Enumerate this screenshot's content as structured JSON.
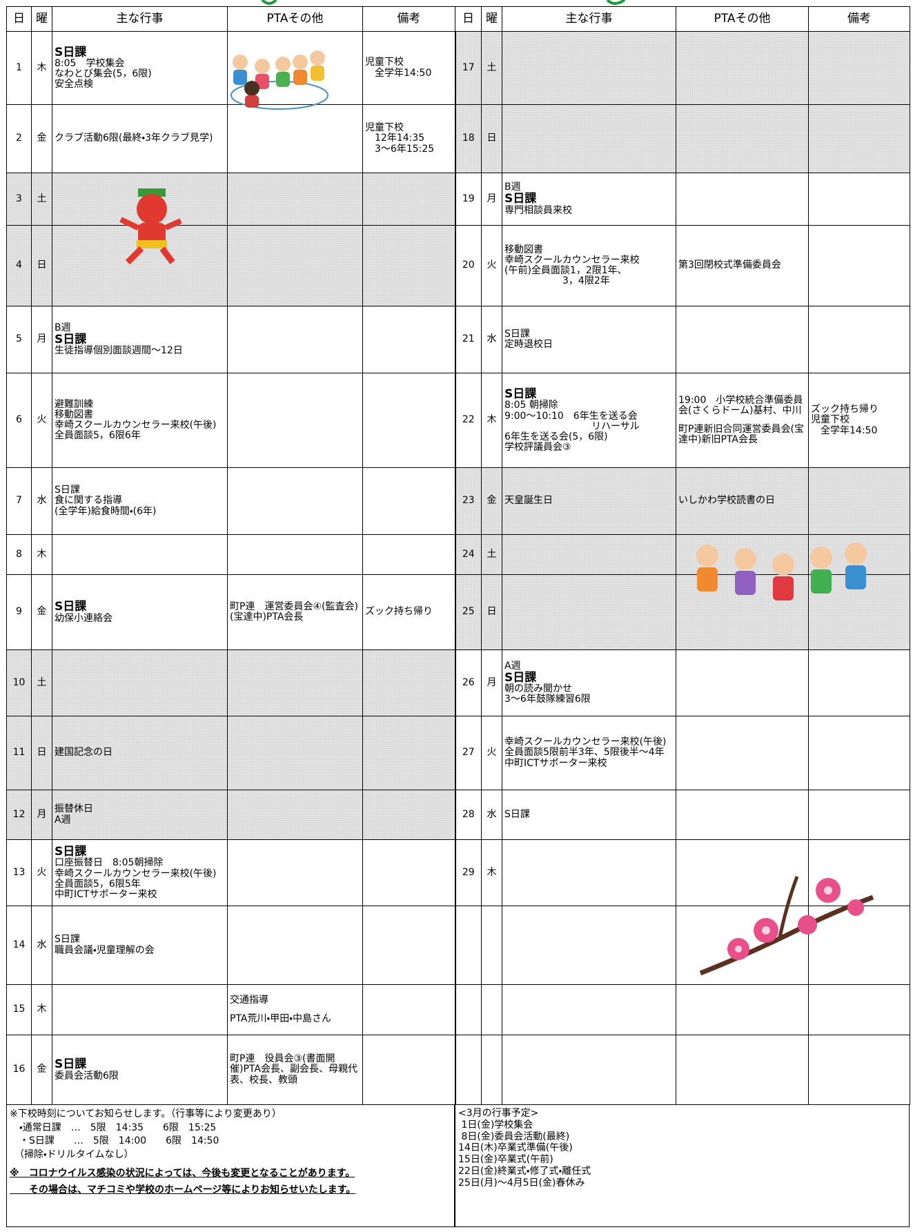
{
  "header": {
    "columns": [
      "日",
      "曜",
      "主な行事",
      "PTAその他",
      "備考"
    ]
  },
  "left_rows": [
    {
      "day": 1,
      "dow": "木",
      "main": [
        {
          "text": "S日課",
          "bold": true
        },
        "8:05　学校集会",
        "なわとび集会(5，6限)",
        "安全点検"
      ],
      "note": [
        "児童下校",
        "　全学年14:50"
      ]
    },
    {
      "day": 2,
      "dow": "金",
      "main": [
        "クラブ活動6限(最終・3年クラブ見学)"
      ],
      "note": [
        "児童下校",
        "　12年14:35",
        "　3～6年15:25"
      ]
    },
    {
      "day": 3,
      "dow": "土",
      "shaded": true
    },
    {
      "day": 4,
      "dow": "日",
      "shaded": true
    },
    {
      "day": 5,
      "dow": "月",
      "main": [
        "B週",
        {
          "text": "S日課",
          "bold": true
        },
        "生徒指導個別面談週間～12日"
      ]
    },
    {
      "day": 6,
      "dow": "火",
      "main": [
        "避難訓練",
        "移動図書",
        "幸崎スクールカウンセラー来校(午後)全員面談5，6限6年"
      ]
    },
    {
      "day": 7,
      "dow": "水",
      "main": [
        "S日課",
        "食に関する指導",
        "(全学年)給食時間・(6年)"
      ]
    },
    {
      "day": 8,
      "dow": "木"
    },
    {
      "day": 9,
      "dow": "金",
      "main": [
        {
          "text": "S日課",
          "bold": true
        },
        "幼保小連絡会"
      ],
      "pta": [
        "町P連　運営委員会④(監査会)(宝達中)PTA会長"
      ],
      "note": [
        "ズック持ち帰り"
      ]
    },
    {
      "day": 10,
      "dow": "土",
      "shaded": true
    },
    {
      "day": 11,
      "dow": "日",
      "shaded": true,
      "main": [
        "建国記念の日"
      ]
    },
    {
      "day": 12,
      "dow": "月",
      "shaded": true,
      "main": [
        "振替休日",
        "A週"
      ]
    },
    {
      "day": 13,
      "dow": "火",
      "main": [
        {
          "text": "S日課",
          "bold": true
        },
        "口座振替日　8:05朝掃除",
        "幸崎スクールカウンセラー来校(午後)全員面談5，6限5年",
        "中町ICTサポーター来校"
      ]
    },
    {
      "day": 14,
      "dow": "水",
      "main": [
        "S日課",
        "職員会議・児童理解の会"
      ]
    },
    {
      "day": 15,
      "dow": "木",
      "pta": [
        "交通指導",
        "PTA荒川・甲田・中島さん"
      ]
    },
    {
      "day": 16,
      "dow": "金",
      "main": [
        {
          "text": "S日課",
          "bold": true
        },
        "委員会活動6限"
      ],
      "pta": [
        "町P連　役員会③(書面開催)PTA会長、副会長、母親代表、校長、教頭"
      ]
    }
  ],
  "right_rows": [
    {
      "day": 17,
      "dow": "土",
      "shaded": true
    },
    {
      "day": 18,
      "dow": "日",
      "shaded": true
    },
    {
      "day": 19,
      "dow": "月",
      "main": [
        "B週",
        {
          "text": "S日課",
          "bold": true
        },
        "専門相談員来校"
      ]
    },
    {
      "day": 20,
      "dow": "火",
      "main": [
        "移動図書",
        "幸崎スクールカウンセラー来校",
        "(午前)全員面談1，2限1年、",
        "　　　　　　3，4限2年"
      ],
      "pta": [
        "第3回閉校式準備委員会"
      ]
    },
    {
      "day": 21,
      "dow": "水",
      "main": [
        "S日課",
        "定時退校日"
      ]
    },
    {
      "day": 22,
      "dow": "木",
      "main": [
        {
          "text": "S日課",
          "bold": true
        },
        "8:05 朝掃除",
        "9:00～10:10　6年生を送る会",
        "　　　　　　　　　リハーサル",
        "6年生を送る会(5，6限)",
        "学校評議員会③"
      ],
      "pta": [
        "19:00　小学校統合準備委員会(さくらドーム)基村、中川",
        "町P連新旧合同運営委員会(宝達中)新旧PTA会長"
      ],
      "note": [
        "ズック持ち帰り",
        "児童下校",
        "　全学年14:50"
      ]
    },
    {
      "day": 23,
      "dow": "金",
      "shaded": true,
      "main": [
        "天皇誕生日"
      ],
      "pta": [
        "いしかわ学校読書の日"
      ]
    },
    {
      "day": 24,
      "dow": "土",
      "shaded": true
    },
    {
      "day": 25,
      "dow": "日",
      "shaded": true
    },
    {
      "day": 26,
      "dow": "月",
      "main": [
        "A週",
        {
          "text": "S日課",
          "bold": true
        },
        "朝の読み聞かせ",
        "3～6年鼓隊練習6限"
      ]
    },
    {
      "day": 27,
      "dow": "火",
      "main": [
        "幸崎スクールカウンセラー来校(午後)全員面談5限前半3年、5限後半～4年",
        "中町ICTサポーター来校"
      ]
    },
    {
      "day": 28,
      "dow": "水",
      "main": [
        "S日課"
      ]
    },
    {
      "day": 29,
      "dow": "木"
    }
  ],
  "footer_left": {
    "lines": [
      "※下校時刻についてお知らせします。（行事等により変更あり）",
      "　・通常日課　…　5限　14:35　　6限　15:25",
      "　・S日課　　…　5限　14:00　　6限　14:50",
      "　（掃除・ドリルタイムなし）"
    ],
    "notice": [
      "※　コロナウイルス感染の状況によっては、今後も変更となることがあります。",
      "　　その場合は、マチコミや学校のホームページ等によりお知らせいたします。"
    ]
  },
  "footer_right": {
    "title": "<3月の行事予定>",
    "lines": [
      " 1日(金)学校集会",
      " 8日(金)委員会活動(最終)",
      "14日(木)卒業式準備(午後)",
      "15日(金)卒業式(午前)",
      "22日(金)終業式・修了式・離任式",
      "25日(月)～4月5日(金)春休み"
    ]
  }
}
